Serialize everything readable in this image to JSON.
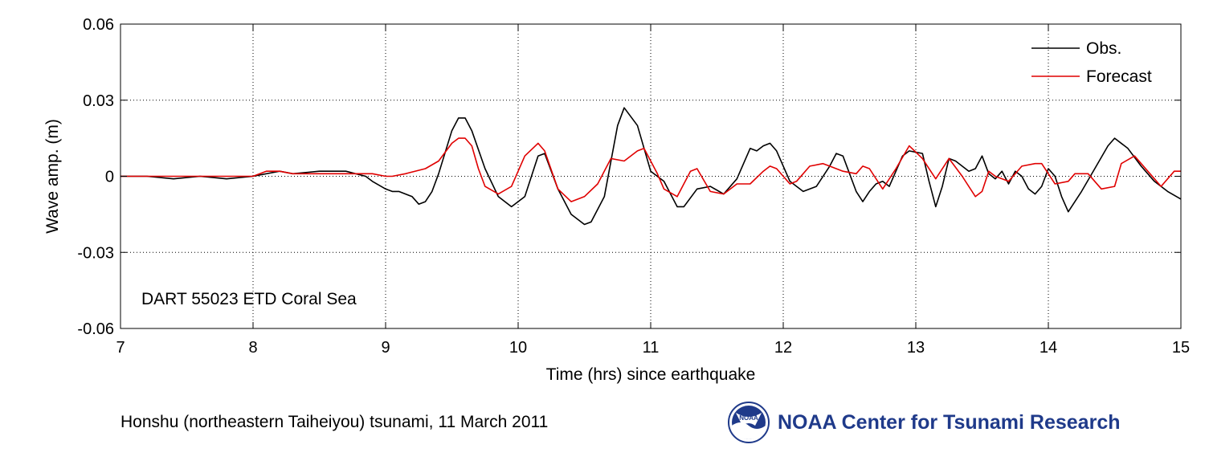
{
  "caption": "Honshu (northeastern Taiheiyou) tsunami, 11 March 2011",
  "org": {
    "name": "NOAA Center for Tsunami Research",
    "logo_text": "NOAA",
    "color": "#1f3a8a"
  },
  "chart_data": {
    "type": "line",
    "title": "",
    "xlabel": "Time (hrs) since earthquake",
    "ylabel": "Wave amp. (m)",
    "xlim": [
      7,
      15
    ],
    "ylim": [
      -0.06,
      0.06
    ],
    "xticks": [
      7,
      8,
      9,
      10,
      11,
      12,
      13,
      14,
      15
    ],
    "yticks": [
      -0.06,
      -0.03,
      0,
      0.03,
      0.06
    ],
    "ytick_labels": [
      "-0.06",
      "-0.03",
      "0",
      "0.03",
      "0.06"
    ],
    "grid": true,
    "legend_position": "top-right",
    "annotation": "DART 55023 ETD Coral Sea",
    "series": [
      {
        "name": "Obs.",
        "color": "#000000",
        "x": [
          7.0,
          7.2,
          7.4,
          7.6,
          7.8,
          8.0,
          8.2,
          8.3,
          8.5,
          8.6,
          8.7,
          8.85,
          8.9,
          9.0,
          9.05,
          9.1,
          9.2,
          9.25,
          9.3,
          9.35,
          9.4,
          9.5,
          9.55,
          9.6,
          9.65,
          9.75,
          9.85,
          9.95,
          10.05,
          10.15,
          10.2,
          10.3,
          10.4,
          10.5,
          10.55,
          10.65,
          10.75,
          10.8,
          10.9,
          11.0,
          11.1,
          11.2,
          11.25,
          11.35,
          11.45,
          11.55,
          11.65,
          11.75,
          11.8,
          11.85,
          11.9,
          11.95,
          12.05,
          12.15,
          12.25,
          12.35,
          12.4,
          12.45,
          12.55,
          12.6,
          12.65,
          12.7,
          12.75,
          12.8,
          12.9,
          12.95,
          13.05,
          13.1,
          13.15,
          13.2,
          13.25,
          13.3,
          13.4,
          13.45,
          13.5,
          13.55,
          13.6,
          13.65,
          13.7,
          13.75,
          13.8,
          13.85,
          13.9,
          13.95,
          14.0,
          14.05,
          14.1,
          14.15,
          14.25,
          14.35,
          14.45,
          14.5,
          14.6,
          14.7,
          14.8,
          14.9,
          15.0
        ],
        "y": [
          0.0,
          0.0,
          -0.001,
          0.0,
          -0.001,
          0.0,
          0.002,
          0.001,
          0.002,
          0.002,
          0.002,
          0.0,
          -0.002,
          -0.005,
          -0.006,
          -0.006,
          -0.008,
          -0.011,
          -0.01,
          -0.006,
          0.001,
          0.018,
          0.023,
          0.023,
          0.018,
          0.003,
          -0.008,
          -0.012,
          -0.008,
          0.008,
          0.009,
          -0.005,
          -0.015,
          -0.019,
          -0.018,
          -0.008,
          0.02,
          0.027,
          0.02,
          0.002,
          -0.002,
          -0.012,
          -0.012,
          -0.005,
          -0.004,
          -0.007,
          -0.001,
          0.011,
          0.01,
          0.012,
          0.013,
          0.01,
          -0.002,
          -0.006,
          -0.004,
          0.004,
          0.009,
          0.008,
          -0.006,
          -0.01,
          -0.006,
          -0.003,
          -0.002,
          -0.004,
          0.008,
          0.01,
          0.009,
          -0.002,
          -0.012,
          -0.004,
          0.007,
          0.006,
          0.002,
          0.003,
          0.008,
          0.001,
          -0.001,
          0.002,
          -0.003,
          0.002,
          0.0,
          -0.005,
          -0.007,
          -0.004,
          0.003,
          0.0,
          -0.008,
          -0.014,
          -0.006,
          0.003,
          0.012,
          0.015,
          0.011,
          0.004,
          -0.002,
          -0.006,
          -0.009
        ]
      },
      {
        "name": "Forecast",
        "color": "#e00000",
        "x": [
          7.0,
          7.5,
          8.0,
          8.1,
          8.2,
          8.3,
          8.5,
          8.7,
          8.9,
          9.0,
          9.05,
          9.15,
          9.3,
          9.4,
          9.5,
          9.55,
          9.6,
          9.65,
          9.7,
          9.75,
          9.85,
          9.95,
          10.05,
          10.15,
          10.2,
          10.3,
          10.4,
          10.5,
          10.6,
          10.7,
          10.8,
          10.9,
          10.95,
          11.05,
          11.1,
          11.2,
          11.3,
          11.35,
          11.45,
          11.55,
          11.65,
          11.75,
          11.85,
          11.9,
          11.95,
          12.05,
          12.1,
          12.2,
          12.3,
          12.35,
          12.45,
          12.55,
          12.6,
          12.65,
          12.75,
          12.85,
          12.95,
          13.05,
          13.15,
          13.25,
          13.35,
          13.45,
          13.5,
          13.55,
          13.6,
          13.7,
          13.8,
          13.9,
          13.95,
          14.05,
          14.15,
          14.2,
          14.3,
          14.4,
          14.5,
          14.55,
          14.65,
          14.75,
          14.85,
          14.95,
          15.0
        ],
        "y": [
          0.0,
          0.0,
          0.0,
          0.002,
          0.002,
          0.001,
          0.001,
          0.001,
          0.001,
          0.0,
          0.0,
          0.001,
          0.003,
          0.006,
          0.013,
          0.015,
          0.015,
          0.012,
          0.003,
          -0.004,
          -0.007,
          -0.004,
          0.008,
          0.013,
          0.01,
          -0.005,
          -0.01,
          -0.008,
          -0.003,
          0.007,
          0.006,
          0.01,
          0.011,
          0.001,
          -0.005,
          -0.008,
          0.002,
          0.003,
          -0.006,
          -0.007,
          -0.003,
          -0.003,
          0.002,
          0.004,
          0.003,
          -0.003,
          -0.002,
          0.004,
          0.005,
          0.004,
          0.002,
          0.001,
          0.004,
          0.003,
          -0.005,
          0.003,
          0.012,
          0.007,
          -0.001,
          0.007,
          0.0,
          -0.008,
          -0.006,
          0.002,
          0.0,
          -0.002,
          0.004,
          0.005,
          0.005,
          -0.003,
          -0.002,
          0.001,
          0.001,
          -0.005,
          -0.004,
          0.005,
          0.008,
          0.002,
          -0.004,
          0.002,
          0.002
        ]
      }
    ]
  }
}
